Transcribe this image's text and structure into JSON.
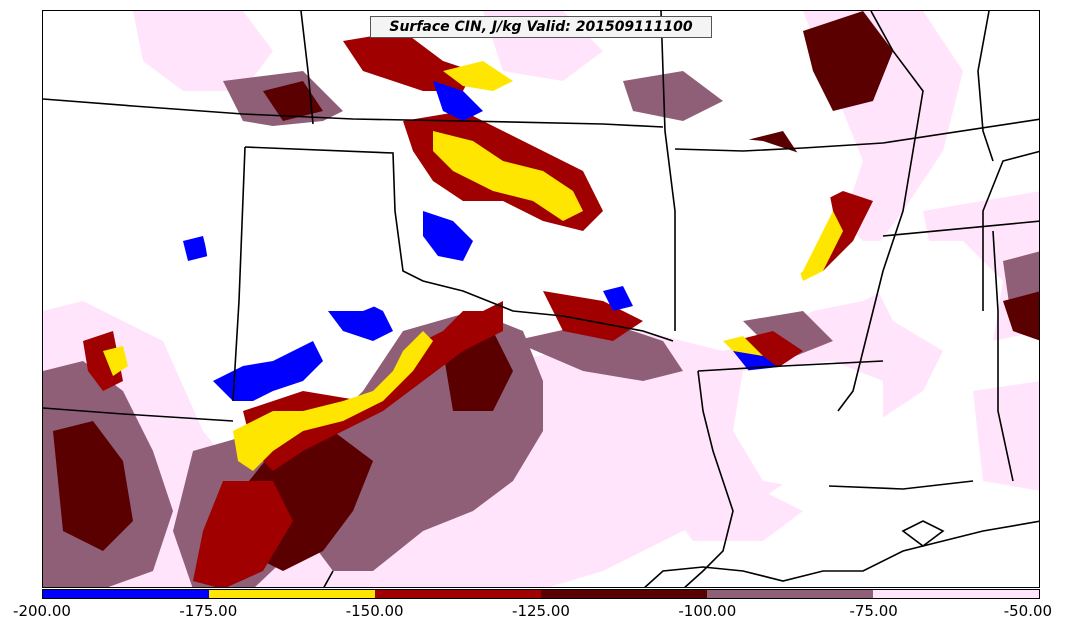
{
  "title": "Surface CIN, J/kg Valid: 201509111100",
  "colorbar": {
    "ticks": [
      "-200.00",
      "-175.00",
      "-150.00",
      "-125.00",
      "-100.00",
      "-75.00",
      "-50.00"
    ],
    "bins": [
      {
        "min": -200,
        "max": -175,
        "color": "#0000ff"
      },
      {
        "min": -175,
        "max": -150,
        "color": "#ffe600"
      },
      {
        "min": -150,
        "max": -125,
        "color": "#a00000"
      },
      {
        "min": -125,
        "max": -100,
        "color": "#5a0000"
      },
      {
        "min": -100,
        "max": -75,
        "color": "#8f5f78"
      },
      {
        "min": -75,
        "max": -50,
        "color": "#ffe4fb"
      }
    ]
  },
  "colors": {
    "blue": "#0000ff",
    "yellow": "#ffe600",
    "red": "#a00000",
    "dark_red": "#5a0000",
    "mauve": "#8f5f78",
    "pink": "#ffe4fb"
  }
}
